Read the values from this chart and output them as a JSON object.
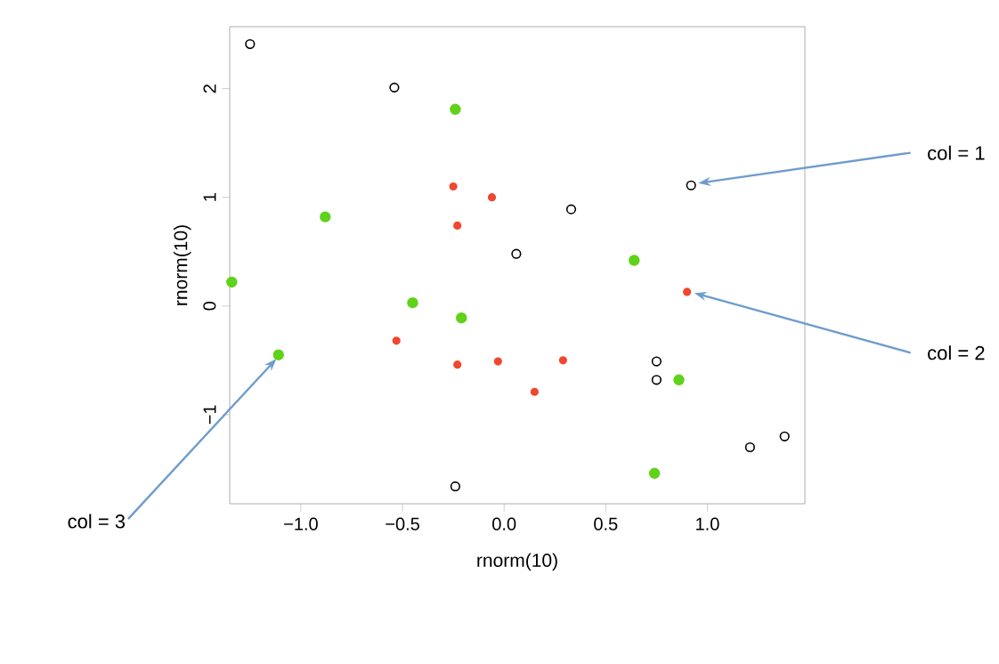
{
  "chart_data": {
    "type": "scatter",
    "xlabel": "rnorm(10)",
    "ylabel": "rnorm(10)",
    "xlim": [
      -1.35,
      1.48
    ],
    "ylim": [
      -1.82,
      2.57
    ],
    "xticks": [
      {
        "value": -1,
        "label": "−1.0"
      },
      {
        "value": -0.5,
        "label": "−0.5"
      },
      {
        "value": 0,
        "label": "0.0"
      },
      {
        "value": 0.5,
        "label": "0.5"
      },
      {
        "value": 1,
        "label": "1.0"
      }
    ],
    "yticks": [
      {
        "value": -1,
        "label": "−1"
      },
      0,
      1,
      2
    ],
    "grid": false,
    "marker": "circle",
    "series": [
      {
        "color": "#000000",
        "x": [
          -1.25,
          -0.54,
          0.92,
          0.33,
          0.06,
          0.75,
          0.75,
          1.21,
          1.38,
          -0.24
        ],
        "values": [
          2.41,
          2.01,
          1.11,
          0.89,
          0.48,
          -0.51,
          -0.68,
          -1.3,
          -1.2,
          -1.66
        ]
      },
      {
        "color": "#f0472e",
        "x": [
          -0.25,
          -0.06,
          -0.23,
          0.9,
          -0.53,
          -0.23,
          -0.03,
          0.29,
          0.15
        ],
        "values": [
          1.1,
          1.0,
          0.74,
          0.13,
          -0.32,
          -0.54,
          -0.51,
          -0.5,
          -0.79
        ]
      },
      {
        "color": "#5fd21a",
        "x": [
          -0.24,
          -0.88,
          -1.34,
          -0.45,
          -0.21,
          0.64,
          -1.11,
          0.86,
          0.74
        ],
        "values": [
          1.81,
          0.82,
          0.22,
          0.03,
          -0.11,
          0.42,
          -0.45,
          -0.68,
          -1.54
        ]
      }
    ],
    "annotations": [
      {
        "text": "col = 1",
        "x": 0.92,
        "y": 1.11
      },
      {
        "text": "col = 2",
        "x": 0.9,
        "y": 0.13
      },
      {
        "text": "col = 3",
        "x": -1.11,
        "y": -0.45
      }
    ]
  }
}
